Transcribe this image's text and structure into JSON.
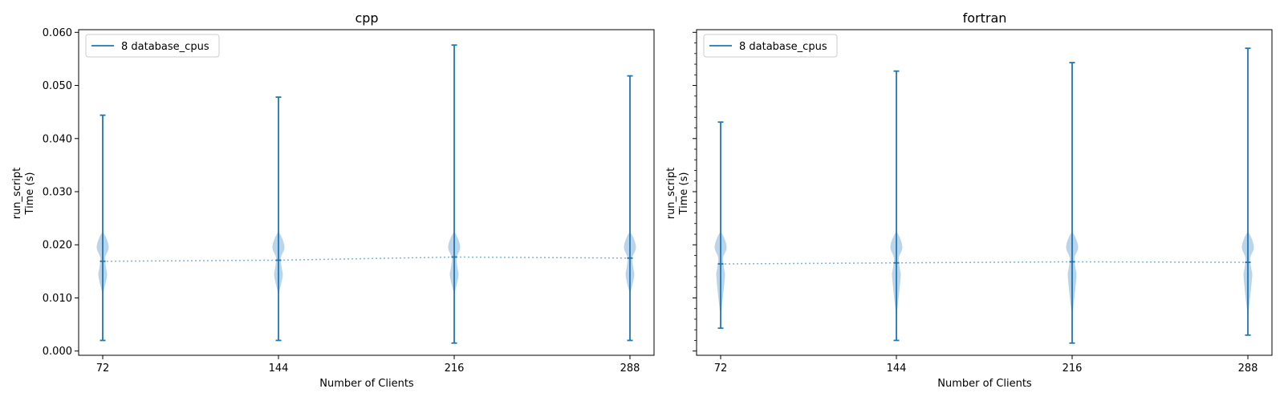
{
  "chart_data": [
    {
      "type": "violin",
      "title": "cpp",
      "xlabel": "Number of Clients",
      "ylabel_lines": [
        "run_script",
        "Time (s)"
      ],
      "categories": [
        "72",
        "144",
        "216",
        "288"
      ],
      "x": [
        72,
        144,
        216,
        288
      ],
      "ylim": [
        -0.0008,
        0.0605
      ],
      "yticks": [
        0.0,
        0.01,
        0.02,
        0.03,
        0.04,
        0.05,
        0.06
      ],
      "ytick_labels": [
        "0.000",
        "0.010",
        "0.020",
        "0.030",
        "0.040",
        "0.050",
        "0.060"
      ],
      "legend": [
        "8 database_cpus"
      ],
      "legend_loc": "upper left",
      "color": "#1f77b4",
      "violin_color": "#aecde6",
      "series": [
        {
          "name": "8 database_cpus",
          "min": [
            0.002,
            0.002,
            0.0015,
            0.002
          ],
          "max": [
            0.0444,
            0.0478,
            0.0576,
            0.0518
          ],
          "mean": [
            0.0169,
            0.0171,
            0.0177,
            0.0175
          ]
        }
      ]
    },
    {
      "type": "violin",
      "title": "fortran",
      "xlabel": "Number of Clients",
      "ylabel_lines": [
        "run_script",
        "Time (s)"
      ],
      "categories": [
        "72",
        "144",
        "216",
        "288"
      ],
      "x": [
        72,
        144,
        216,
        288
      ],
      "ylim": [
        -0.0008,
        0.0605
      ],
      "yticks": [
        0.0,
        0.01,
        0.02,
        0.03,
        0.04,
        0.05,
        0.06
      ],
      "ytick_labels": [],
      "legend": [
        "8 database_cpus"
      ],
      "legend_loc": "upper left",
      "color": "#1f77b4",
      "violin_color": "#aecde6",
      "series": [
        {
          "name": "8 database_cpus",
          "min": [
            0.0043,
            0.002,
            0.0015,
            0.003
          ],
          "max": [
            0.0431,
            0.0527,
            0.0543,
            0.057
          ],
          "mean": [
            0.0164,
            0.0166,
            0.0168,
            0.0167
          ]
        }
      ]
    }
  ]
}
